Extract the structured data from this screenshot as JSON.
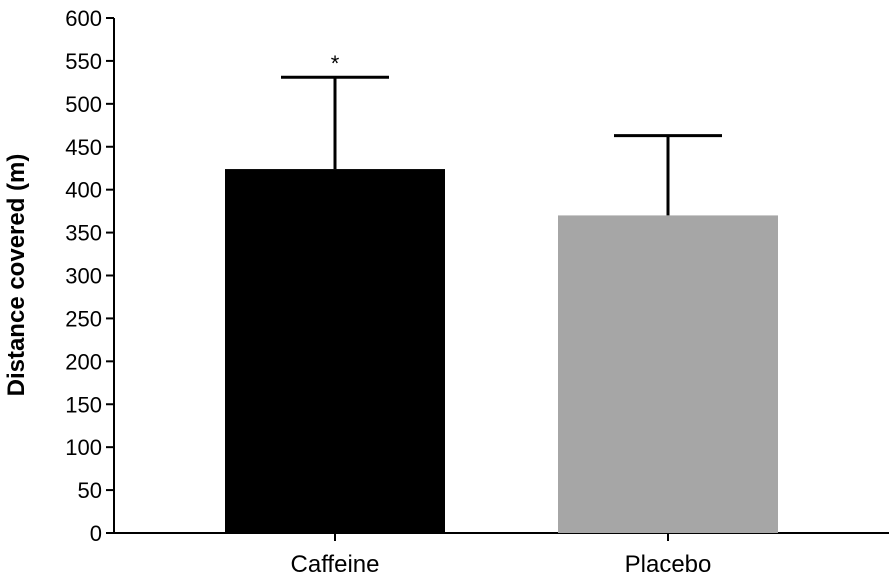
{
  "chart_data": {
    "type": "bar",
    "categories": [
      "Caffeine",
      "Placebo"
    ],
    "values": [
      424,
      370
    ],
    "errors": [
      107,
      93
    ],
    "ylabel": "Distance covered (m)",
    "xlabel": "",
    "ylim": [
      0,
      600
    ],
    "yticks": [
      0,
      50,
      100,
      150,
      200,
      250,
      300,
      350,
      400,
      450,
      500,
      550,
      600
    ],
    "colors": [
      "#000000",
      "#a6a6a6"
    ],
    "annotations": [
      {
        "category": "Caffeine",
        "text": "*"
      }
    ],
    "grid": false,
    "legend": "none"
  }
}
